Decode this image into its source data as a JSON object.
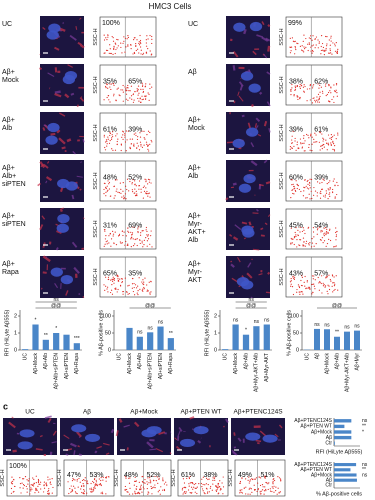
{
  "title": "HMC3 Cells",
  "panel_label": "c",
  "flow_ylabel": "SSC-H",
  "left_panels": [
    {
      "label": [
        "UC"
      ],
      "percents": [
        "100%"
      ]
    },
    {
      "label": [
        "Aβ+",
        "Mock"
      ],
      "percents": [
        "35%",
        "65%"
      ]
    },
    {
      "label": [
        "Aβ+",
        "Alb"
      ],
      "percents": [
        "61%",
        "39%"
      ]
    },
    {
      "label": [
        "Aβ+",
        "Alb+",
        "siPTEN"
      ],
      "percents": [
        "48%",
        "52%"
      ]
    },
    {
      "label": [
        "Aβ+",
        "siPTEN"
      ],
      "percents": [
        "31%",
        "69%"
      ]
    },
    {
      "label": [
        "Aβ+",
        "Rapa"
      ],
      "percents": [
        "65%",
        "35%"
      ]
    }
  ],
  "right_panels": [
    {
      "label": [
        "UC"
      ],
      "percents": [
        "99%"
      ]
    },
    {
      "label": [
        "Aβ"
      ],
      "percents": [
        "38%",
        "62%"
      ]
    },
    {
      "label": [
        "Aβ+",
        "Mock"
      ],
      "percents": [
        "39%",
        "61%"
      ]
    },
    {
      "label": [
        "Aβ+",
        "Alb"
      ],
      "percents": [
        "60%",
        "39%"
      ]
    },
    {
      "label": [
        "Aβ+",
        "Myr-",
        "AKT+",
        "Alb"
      ],
      "percents": [
        "45%",
        "54%"
      ]
    },
    {
      "label": [
        "Aβ+",
        "Myr-",
        "AKT"
      ],
      "percents": [
        "43%",
        "57%"
      ]
    }
  ],
  "c_panels": [
    {
      "label": "UC",
      "percents": [
        "100%"
      ]
    },
    {
      "label": "Aβ",
      "percents": [
        "47%",
        "53%"
      ]
    },
    {
      "label": "Aβ+Mock",
      "percents": [
        "48%",
        "52%"
      ]
    },
    {
      "label": "Aβ+PTEN WT",
      "percents": [
        "61%",
        "38%"
      ]
    },
    {
      "label": "Aβ+PTENC124S",
      "percents": [
        "49%",
        "51%"
      ]
    }
  ],
  "chart_data": [
    {
      "type": "bar",
      "orientation": "vertical",
      "ylabel": "RFI (HiLyte Aβ555)",
      "categories": [
        "UC",
        "Aβ+Mock",
        "Aβ+Alb",
        "Aβ+Alb+siPTEN",
        "Aβ+siPTEN",
        "Aβ+Rapa"
      ],
      "values": [
        0.05,
        1.5,
        0.6,
        1.0,
        0.9,
        0.4
      ],
      "color": "#4a86c8",
      "ylim": [
        0,
        2
      ],
      "yticks": [
        0,
        1,
        2
      ],
      "significance": [
        null,
        "*",
        "**",
        "*",
        null,
        "***"
      ],
      "brackets": [
        "@@",
        "ns"
      ]
    },
    {
      "type": "bar",
      "orientation": "vertical",
      "ylabel": "% Aβ-positive cells",
      "categories": [
        "UC",
        "Aβ+Mock",
        "Aβ+Alb",
        "Aβ+Alb+siPTEN",
        "Aβ+siPTEN",
        "Aβ+Rapa"
      ],
      "values": [
        0,
        65,
        39,
        52,
        69,
        35
      ],
      "color": "#4a86c8",
      "ylim": [
        0,
        100
      ],
      "yticks": [
        0,
        50,
        100
      ],
      "significance": [
        null,
        null,
        "ns",
        "ns",
        "ns",
        "**"
      ],
      "brackets": [
        "@@"
      ]
    },
    {
      "type": "bar",
      "orientation": "vertical",
      "ylabel": "RFI (HiLyte Aβ555)",
      "categories": [
        "UC",
        "Aβ+Mock",
        "Aβ+Alb",
        "Aβ+Myr-AKT+Alb",
        "Aβ+Myr-AKT"
      ],
      "values": [
        0.05,
        1.5,
        0.9,
        1.4,
        1.5
      ],
      "color": "#4a86c8",
      "ylim": [
        0,
        2
      ],
      "yticks": [
        0,
        1,
        2
      ],
      "significance": [
        null,
        "ns",
        "*",
        "ns",
        "ns"
      ],
      "brackets": [
        "@@",
        "ns"
      ]
    },
    {
      "type": "bar",
      "orientation": "vertical",
      "ylabel": "% Aβ-positive cells",
      "categories": [
        "UC",
        "Aβ",
        "Aβ+Mock",
        "Aβ+Alb",
        "Aβ+Myr-AKT+Alb",
        "Aβ+Myr"
      ],
      "values": [
        1,
        62,
        61,
        39,
        54,
        57
      ],
      "color": "#4a86c8",
      "ylim": [
        0,
        100
      ],
      "yticks": [
        0,
        50,
        100
      ],
      "significance": [
        null,
        "ns",
        "ns",
        "**",
        "ns",
        "ns"
      ],
      "brackets": [
        "@@"
      ]
    },
    {
      "type": "bar",
      "orientation": "horizontal",
      "xlabel": "RFI (HiLyte Aβ555)",
      "categories": [
        "Aβ+PTENC124S",
        "Aβ+PTEN WT",
        "Aβ+Mock",
        "Aβ",
        "Ctr"
      ],
      "values": [
        1.0,
        0.6,
        1.0,
        1.0,
        0.05
      ],
      "color": "#4a86c8",
      "xlim": [
        0,
        1.5
      ],
      "significance": [
        "ns",
        "**",
        "*",
        null,
        null
      ]
    },
    {
      "type": "bar",
      "orientation": "horizontal",
      "xlabel": "% Aβ-positive cells",
      "categories": [
        "Aβ+PTENC124S",
        "Aβ+PTEN WT",
        "Aβ+Mock",
        "Aβ",
        "Ctr"
      ],
      "values": [
        51,
        38,
        52,
        53,
        0
      ],
      "color": "#4a86c8",
      "xlim": [
        0,
        60
      ],
      "significance": [
        "ns",
        "**",
        "ns",
        null,
        null
      ]
    }
  ]
}
